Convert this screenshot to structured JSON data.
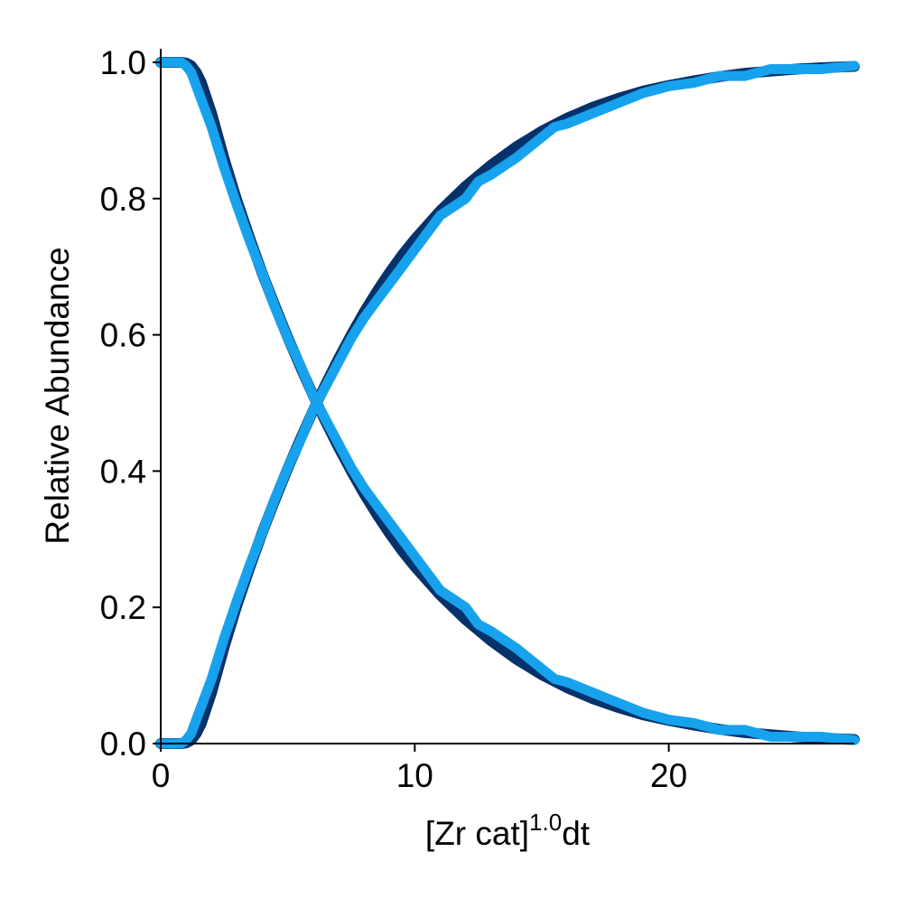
{
  "chart_data": {
    "type": "line",
    "xlabel": {
      "base": "[Zr cat]",
      "superscript": "1.0",
      "suffix": "dt"
    },
    "ylabel": "Relative Abundance",
    "xlim": [
      0,
      27.3
    ],
    "ylim": [
      0,
      1.0
    ],
    "xticks": [
      0,
      10,
      20
    ],
    "xtick_labels": [
      "0",
      "10",
      "20"
    ],
    "yticks": [
      0.0,
      0.2,
      0.4,
      0.6,
      0.8,
      1.0
    ],
    "ytick_labels": [
      "0.0",
      "0.2",
      "0.4",
      "0.6",
      "0.8",
      "1.0"
    ],
    "grid": false,
    "legend": "none",
    "colors": {
      "fit": "#06326b",
      "data": "#17a2ed"
    },
    "series": [
      {
        "role": "fit",
        "color": "#06326b",
        "x": [
          0,
          0.8,
          1.0,
          1.2,
          1.4,
          1.6,
          2.0,
          2.5,
          3.0,
          3.5,
          4.0,
          4.5,
          5.0,
          5.5,
          6.0,
          6.5,
          7.0,
          7.5,
          8.0,
          8.5,
          9.0,
          9.5,
          10.0,
          11.0,
          12.0,
          13.0,
          14.0,
          15.0,
          16.0,
          17.0,
          18.0,
          19.0,
          20.0,
          21.0,
          22.0,
          23.0,
          24.0,
          25.0,
          26.0,
          27.3
        ],
        "y": [
          1.0,
          1.0,
          0.999,
          0.995,
          0.985,
          0.97,
          0.925,
          0.858,
          0.797,
          0.742,
          0.69,
          0.642,
          0.596,
          0.553,
          0.511,
          0.472,
          0.435,
          0.4,
          0.367,
          0.337,
          0.309,
          0.283,
          0.26,
          0.218,
          0.182,
          0.151,
          0.124,
          0.101,
          0.082,
          0.066,
          0.053,
          0.042,
          0.034,
          0.027,
          0.021,
          0.016,
          0.013,
          0.01,
          0.008,
          0.006
        ]
      },
      {
        "role": "fit",
        "color": "#06326b",
        "x": [
          0,
          0.8,
          1.0,
          1.2,
          1.4,
          1.6,
          2.0,
          2.5,
          3.0,
          3.5,
          4.0,
          4.5,
          5.0,
          5.5,
          6.0,
          6.5,
          7.0,
          7.5,
          8.0,
          8.5,
          9.0,
          9.5,
          10.0,
          11.0,
          12.0,
          13.0,
          14.0,
          15.0,
          16.0,
          17.0,
          18.0,
          19.0,
          20.0,
          21.0,
          22.0,
          23.0,
          24.0,
          25.0,
          26.0,
          27.3
        ],
        "y": [
          0.0,
          0.0,
          0.001,
          0.005,
          0.015,
          0.03,
          0.075,
          0.142,
          0.203,
          0.258,
          0.31,
          0.358,
          0.404,
          0.447,
          0.489,
          0.528,
          0.565,
          0.6,
          0.633,
          0.663,
          0.691,
          0.717,
          0.74,
          0.782,
          0.818,
          0.849,
          0.876,
          0.899,
          0.918,
          0.934,
          0.947,
          0.958,
          0.966,
          0.973,
          0.979,
          0.984,
          0.987,
          0.99,
          0.992,
          0.994
        ]
      },
      {
        "role": "data",
        "color": "#17a2ed",
        "x": [
          0,
          0.8,
          1.0,
          1.2,
          1.5,
          2.0,
          2.5,
          3.0,
          3.5,
          4.0,
          4.5,
          5.0,
          5.5,
          6.0,
          6.5,
          7.0,
          7.5,
          8.0,
          8.5,
          9.0,
          9.5,
          10.0,
          10.5,
          11.0,
          12.0,
          12.5,
          13.0,
          14.0,
          15.0,
          15.5,
          16.0,
          17.0,
          18.0,
          19.0,
          20.0,
          21.0,
          22.0,
          23.0,
          23.5,
          24.0,
          25.0,
          26.0,
          27.3
        ],
        "y": [
          1.0,
          1.0,
          0.995,
          0.985,
          0.955,
          0.905,
          0.845,
          0.79,
          0.738,
          0.69,
          0.64,
          0.595,
          0.555,
          0.51,
          0.475,
          0.44,
          0.405,
          0.375,
          0.35,
          0.325,
          0.3,
          0.275,
          0.25,
          0.225,
          0.2,
          0.175,
          0.165,
          0.14,
          0.11,
          0.095,
          0.09,
          0.075,
          0.06,
          0.045,
          0.035,
          0.03,
          0.02,
          0.02,
          0.015,
          0.01,
          0.01,
          0.01,
          0.005
        ]
      },
      {
        "role": "data",
        "color": "#17a2ed",
        "x": [
          0,
          0.8,
          1.0,
          1.2,
          1.5,
          2.0,
          2.5,
          3.0,
          3.5,
          4.0,
          4.5,
          5.0,
          5.5,
          6.0,
          6.5,
          7.0,
          7.5,
          8.0,
          8.5,
          9.0,
          9.5,
          10.0,
          10.5,
          11.0,
          12.0,
          12.5,
          13.0,
          14.0,
          15.0,
          15.5,
          16.0,
          17.0,
          18.0,
          19.0,
          20.0,
          21.0,
          22.0,
          23.0,
          23.5,
          24.0,
          25.0,
          26.0,
          27.3
        ],
        "y": [
          0.0,
          0.0,
          0.005,
          0.015,
          0.045,
          0.095,
          0.155,
          0.21,
          0.262,
          0.31,
          0.36,
          0.405,
          0.445,
          0.49,
          0.525,
          0.56,
          0.595,
          0.625,
          0.65,
          0.675,
          0.7,
          0.725,
          0.75,
          0.775,
          0.8,
          0.825,
          0.835,
          0.86,
          0.89,
          0.905,
          0.91,
          0.925,
          0.94,
          0.955,
          0.965,
          0.97,
          0.98,
          0.98,
          0.985,
          0.99,
          0.99,
          0.99,
          0.995
        ]
      }
    ]
  }
}
